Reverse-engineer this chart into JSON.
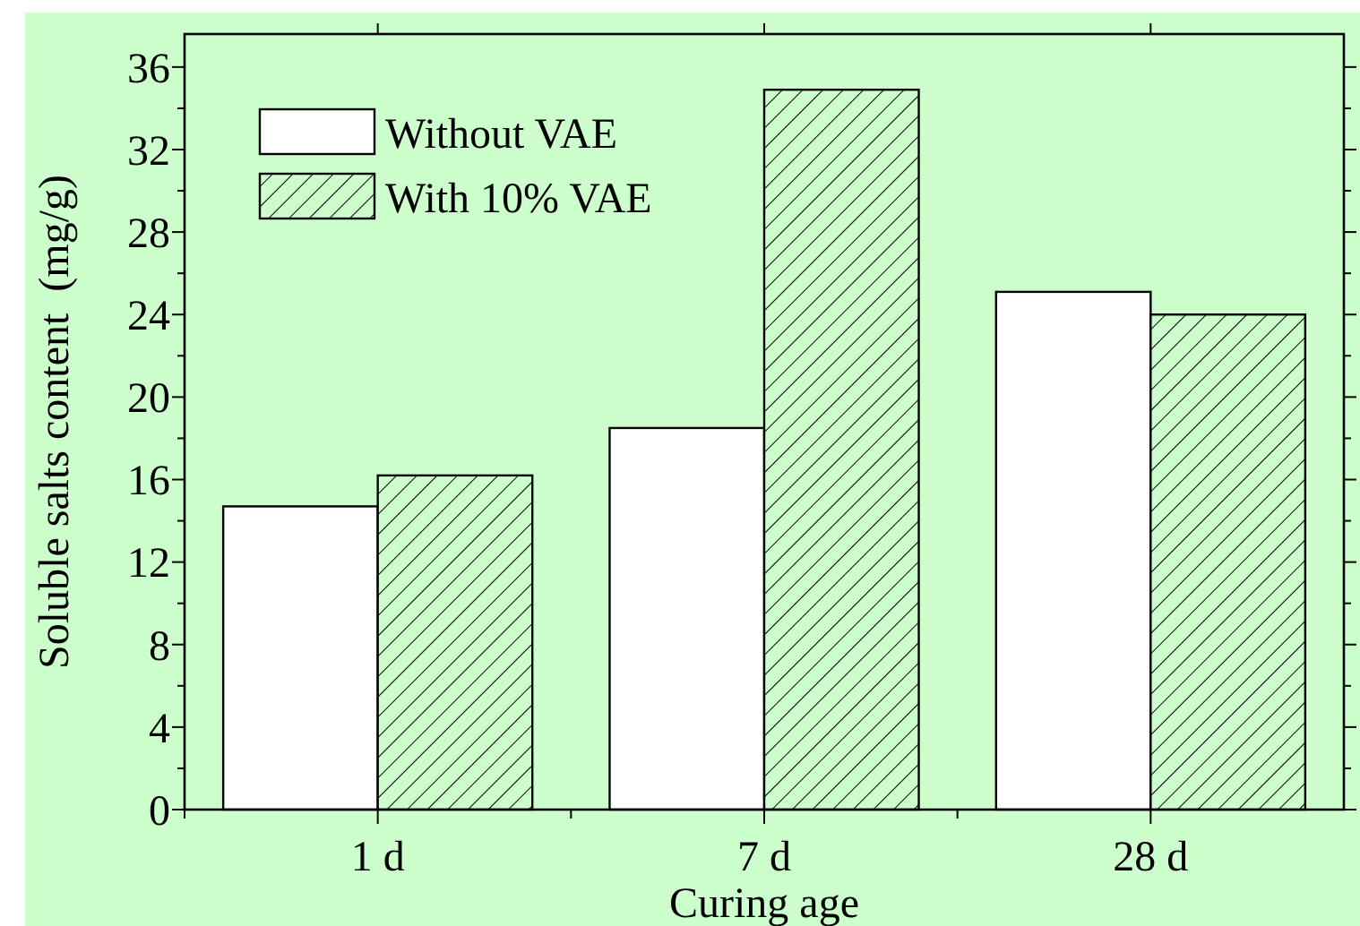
{
  "chart_data": {
    "type": "bar",
    "xlabel": "Curing age",
    "ylabel": "Soluble salts content  (mg/g)",
    "categories": [
      "1 d",
      "7 d",
      "28 d"
    ],
    "series": [
      {
        "name": "Without VAE",
        "color": "#ffffff",
        "values": [
          14.7,
          18.5,
          25.1
        ]
      },
      {
        "name": "With 10% VAE",
        "color": "#000000",
        "values": [
          16.2,
          34.9,
          24.0
        ]
      }
    ],
    "ylim": [
      0,
      37.6
    ],
    "yticks": [
      0,
      {
        "value": 2,
        "label": null
      },
      4,
      {
        "value": 6,
        "label": null
      },
      8,
      {
        "value": 10,
        "label": null
      },
      12,
      {
        "value": 14,
        "label": null
      },
      16,
      {
        "value": 18,
        "label": null
      },
      20,
      {
        "value": 22,
        "label": null
      },
      24,
      {
        "value": 26,
        "label": null
      },
      28,
      {
        "value": 30,
        "label": null
      },
      32,
      {
        "value": 34,
        "label": null
      },
      36
    ],
    "grid": false,
    "legend": "top left"
  }
}
